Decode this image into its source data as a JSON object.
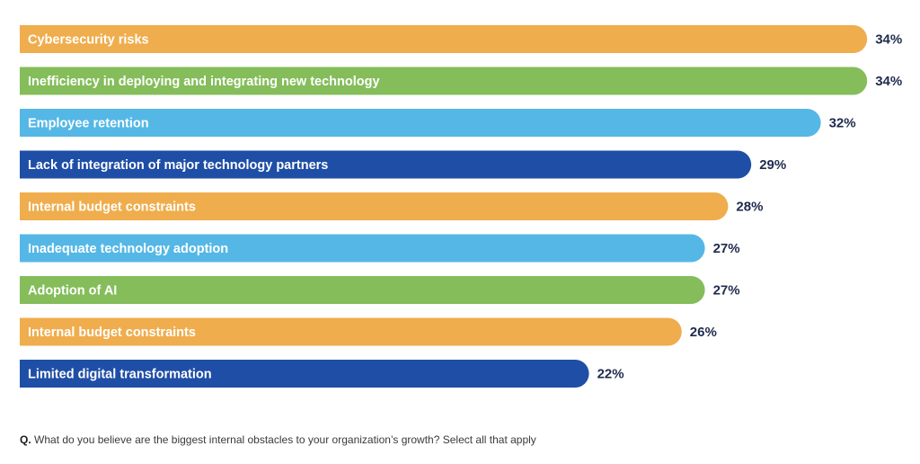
{
  "chart_data": {
    "type": "bar",
    "orientation": "horizontal",
    "title": "",
    "xlabel": "",
    "ylabel": "",
    "value_suffix": "%",
    "grid": false,
    "legend": "none",
    "categories": [
      "Cybersecurity risks",
      "Inefficiency in deploying and integrating new technology",
      "Employee retention",
      "Lack of integration of major technology partners",
      "Internal budget constraints",
      "Inadequate technology adoption",
      "Adoption of AI",
      "Internal budget constraints",
      "Limited digital transformation"
    ],
    "values": [
      34,
      34,
      32,
      29,
      28,
      27,
      27,
      26,
      22
    ],
    "value_labels": [
      "34%",
      "34%",
      "32%",
      "29%",
      "28%",
      "27%",
      "27%",
      "26%",
      "22%"
    ],
    "colors": [
      "#EFAD4D",
      "#84BD5A",
      "#55B7E6",
      "#1F4EA6",
      "#EFAD4D",
      "#55B7E6",
      "#84BD5A",
      "#EFAD4D",
      "#1F4EA6"
    ]
  },
  "footnote": {
    "prefix": "Q.",
    "text": "What do you believe are the biggest internal obstacles to your organization’s growth? Select all that apply"
  }
}
